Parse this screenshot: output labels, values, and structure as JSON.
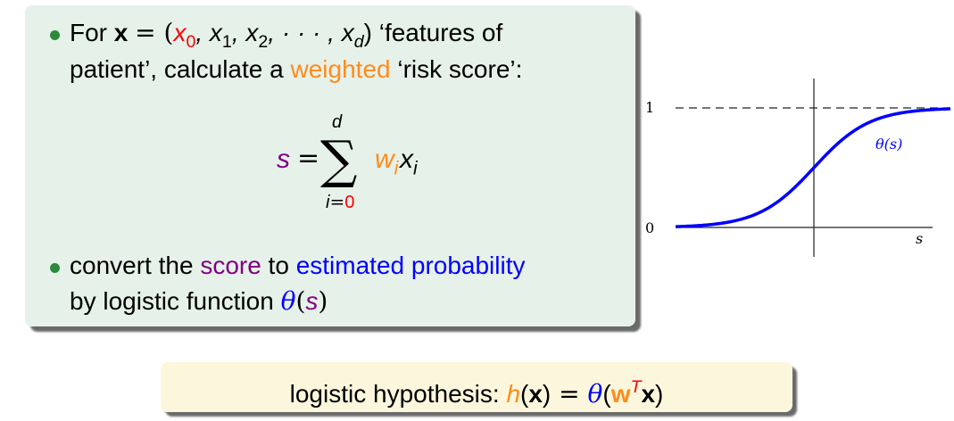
{
  "bullet1": {
    "for": "For",
    "x_bold": "x",
    "eq_open": "= (",
    "x0": "x",
    "sub0": "0",
    "x1": ", x",
    "sub1": "1",
    "x2": ", x",
    "sub2": "2",
    "dots": ", · · · , x",
    "subd": "d",
    "close": ") ‘features of",
    "line2_start": "patient’, calculate a ",
    "weighted": "weighted",
    "line2_end": " ‘risk score’:"
  },
  "formula": {
    "s": "s",
    "eq": "=",
    "upper": "d",
    "lower_i": "i",
    "lower_eq": "=",
    "lower_0": "0",
    "w": "w",
    "w_sub": "i",
    "x": "x",
    "x_sub": "i"
  },
  "bullet2": {
    "line1_start": "convert the ",
    "score": "score",
    "line1_mid": " to ",
    "estimated": "estimated probability",
    "line2_start": "by logistic function ",
    "theta": "θ",
    "paren_open": "(",
    "s": "s",
    "paren_close": ")"
  },
  "graph": {
    "label_one": "1",
    "label_zero": "0",
    "curve_label": "θ(s)",
    "axis_label": "s",
    "curve_color": "#0000ff"
  },
  "hypothesis": {
    "label": "logistic hypothesis: ",
    "h": "h",
    "paren_open": "(",
    "x": "x",
    "paren_close": ")",
    "eq": " = ",
    "theta": "θ",
    "paren_open2": "(",
    "w": "w",
    "sup_t": "T",
    "x2": "x",
    "paren_close2": ")"
  }
}
